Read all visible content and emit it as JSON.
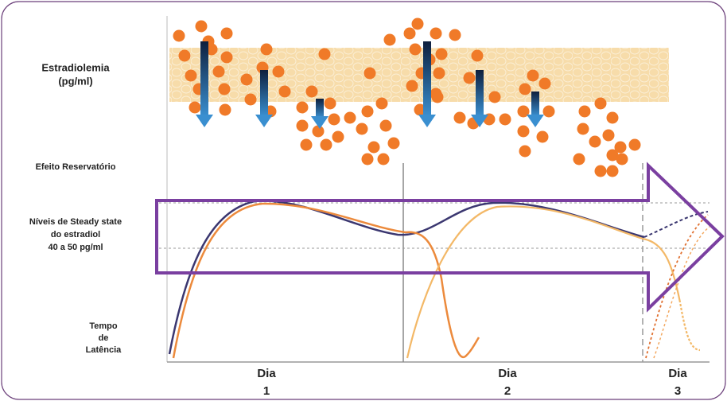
{
  "labels": {
    "estradiolemia": [
      "Estradiolemia",
      "(pg/ml)"
    ],
    "reservoir": "Efeito Reservatório",
    "steady_state": [
      "Níveis de Steady state",
      "do estradiol",
      "40 a 50 pg/ml"
    ],
    "latency": [
      "Tempo",
      "de",
      "Latência"
    ]
  },
  "days": [
    [
      "Dia",
      "1"
    ],
    [
      "Dia",
      "2"
    ],
    [
      "Dia",
      "3"
    ]
  ]
}
